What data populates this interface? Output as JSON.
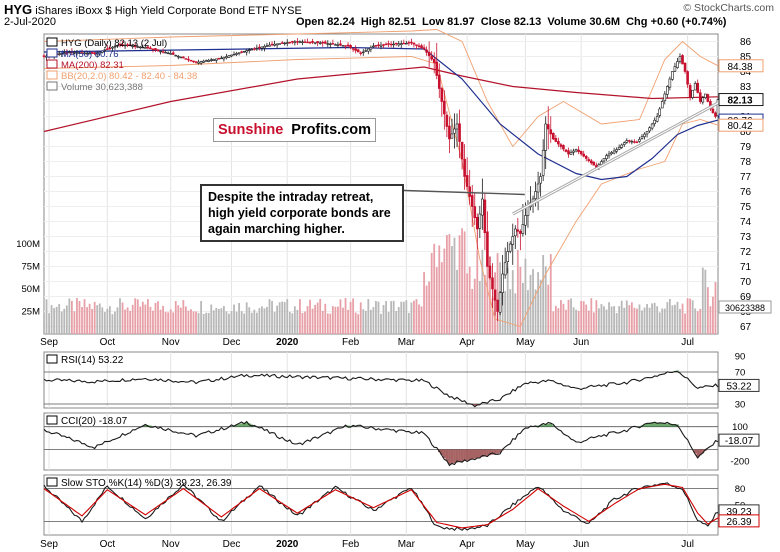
{
  "header": {
    "symbol": "HYG",
    "name": "iShares iBoxx $ High Yield Corporate Bond ETF",
    "exchange": "NYSE",
    "date": "2-Jul-2020",
    "open_label": "Open",
    "open": "82.24",
    "high_label": "High",
    "high": "82.51",
    "low_label": "Low",
    "low": "81.97",
    "close_label": "Close",
    "close": "82.13",
    "volume_label": "Volume",
    "volume": "30.6M",
    "chg_label": "Chg",
    "chg": "+0.60 (+0.74%)",
    "watermark": "© StockCharts.com"
  },
  "legend": {
    "price": "HYG (Daily) 82.13 (2 Jul)",
    "ma50": "MA(50) 80.76",
    "ma200": "MA(200) 82.31",
    "bb": "BB(20,2.0) 80.42 - 82.40 - 84.38",
    "volume": "Volume 30,623,388"
  },
  "logo": {
    "part1": "Sunshine",
    "part2": "Profits.com"
  },
  "annotation": "Despite the intraday retreat, high yield corporate bonds are again marching higher.",
  "colors": {
    "up": "#1a1a1a",
    "down": "#c8102e",
    "ma50": "#1f2f8f",
    "ma200": "#b3122a",
    "bb": "#f0a070",
    "trendline": "#a8a8a8",
    "volume_up": "#b8b8b8",
    "volume_down": "#e8a0a8",
    "ind_line": "#1a1a1a",
    "pos_fill": "#3c8a3c",
    "neg_fill": "#8a3030",
    "stoch_d": "#d00000"
  },
  "chart_data": [
    {
      "type": "candlestick",
      "title": "HYG (Daily)",
      "x_axis_labels": [
        "Sep",
        "Oct",
        "Nov",
        "Dec",
        "2020",
        "Feb",
        "Mar",
        "Apr",
        "May",
        "Jun",
        "Jul"
      ],
      "y_axis_ticks": [
        67,
        68,
        69,
        70,
        71,
        72,
        73,
        74,
        75,
        76,
        77,
        78,
        79,
        80,
        81,
        82,
        83,
        84,
        85,
        86
      ],
      "ylim": [
        66.5,
        86.5
      ],
      "price_markers": [
        {
          "label": "84.38",
          "value": 84.38
        },
        {
          "label": "82.13",
          "value": 82.13
        },
        {
          "label": "80.76",
          "value": 80.76
        },
        {
          "label": "80.42",
          "value": 80.42
        }
      ],
      "volume_axis_ticks": [
        "25M",
        "50M",
        "75M",
        "100M"
      ],
      "volume_marker": "30623388",
      "price_path": [
        [
          0,
          85.0
        ],
        [
          10,
          85.3
        ],
        [
          20,
          85.2
        ],
        [
          30,
          85.8
        ],
        [
          40,
          85.6
        ],
        [
          50,
          85.2
        ],
        [
          60,
          84.6
        ],
        [
          70,
          84.9
        ],
        [
          80,
          85.4
        ],
        [
          90,
          85.8
        ],
        [
          100,
          86.0
        ],
        [
          110,
          85.9
        ],
        [
          120,
          85.7
        ],
        [
          125,
          85.2
        ],
        [
          130,
          85.7
        ],
        [
          135,
          85.8
        ],
        [
          145,
          85.9
        ],
        [
          150,
          85.5
        ],
        [
          154,
          84.6
        ],
        [
          157,
          82.0
        ],
        [
          160,
          79.5
        ],
        [
          163,
          80.5
        ],
        [
          166,
          77.0
        ],
        [
          169,
          75.0
        ],
        [
          171,
          73.5
        ],
        [
          173,
          75.5
        ],
        [
          175,
          71.0
        ],
        [
          177,
          69.5
        ],
        [
          179,
          68.0
        ],
        [
          181,
          70.5
        ],
        [
          183,
          72.0
        ],
        [
          186,
          73.5
        ],
        [
          188,
          73.2
        ],
        [
          191,
          75.0
        ],
        [
          193,
          75.5
        ],
        [
          196,
          77.0
        ],
        [
          198,
          80.5
        ],
        [
          201,
          79.5
        ],
        [
          204,
          79.0
        ],
        [
          207,
          78.5
        ],
        [
          210,
          78.8
        ],
        [
          214,
          78.2
        ],
        [
          218,
          77.6
        ],
        [
          222,
          78.4
        ],
        [
          226,
          78.8
        ],
        [
          230,
          79.4
        ],
        [
          234,
          79.3
        ],
        [
          238,
          80.0
        ],
        [
          242,
          81.0
        ],
        [
          245,
          82.5
        ],
        [
          248,
          84.0
        ],
        [
          251,
          85.0
        ],
        [
          253,
          84.0
        ],
        [
          255,
          82.3
        ],
        [
          257,
          83.2
        ],
        [
          259,
          82.0
        ],
        [
          261,
          82.5
        ],
        [
          263,
          81.5
        ],
        [
          265,
          81.0
        ],
        [
          266,
          82.13
        ]
      ],
      "ma50_path": [
        [
          0,
          85.3
        ],
        [
          40,
          85.4
        ],
        [
          80,
          85.5
        ],
        [
          120,
          85.6
        ],
        [
          150,
          85.5
        ],
        [
          165,
          83.5
        ],
        [
          180,
          80.5
        ],
        [
          195,
          78.5
        ],
        [
          210,
          77.2
        ],
        [
          220,
          76.8
        ],
        [
          230,
          77.0
        ],
        [
          240,
          78.2
        ],
        [
          250,
          79.8
        ],
        [
          258,
          80.4
        ],
        [
          266,
          80.76
        ]
      ],
      "ma200_path": [
        [
          0,
          80.0
        ],
        [
          50,
          82.0
        ],
        [
          100,
          83.5
        ],
        [
          150,
          84.3
        ],
        [
          165,
          83.7
        ],
        [
          185,
          83.0
        ],
        [
          210,
          82.6
        ],
        [
          240,
          82.2
        ],
        [
          266,
          82.31
        ]
      ],
      "bb_upper_path": [
        [
          0,
          86.0
        ],
        [
          50,
          86.3
        ],
        [
          100,
          86.5
        ],
        [
          145,
          86.7
        ],
        [
          155,
          86.8
        ],
        [
          165,
          86.0
        ],
        [
          175,
          82.0
        ],
        [
          185,
          79.0
        ],
        [
          195,
          81.0
        ],
        [
          205,
          82.0
        ],
        [
          220,
          80.5
        ],
        [
          235,
          80.8
        ],
        [
          245,
          84.8
        ],
        [
          252,
          86.0
        ],
        [
          259,
          85.0
        ],
        [
          266,
          84.38
        ]
      ],
      "bb_lower_path": [
        [
          0,
          84.2
        ],
        [
          50,
          84.4
        ],
        [
          100,
          84.8
        ],
        [
          145,
          85.0
        ],
        [
          155,
          84.5
        ],
        [
          165,
          78.0
        ],
        [
          172,
          71.5
        ],
        [
          178,
          67.5
        ],
        [
          188,
          67.0
        ],
        [
          198,
          70.5
        ],
        [
          210,
          74.0
        ],
        [
          220,
          76.5
        ],
        [
          235,
          77.5
        ],
        [
          245,
          78.0
        ],
        [
          252,
          80.5
        ],
        [
          259,
          80.8
        ],
        [
          266,
          80.42
        ]
      ],
      "trendline": {
        "from": [
          185,
          74.5
        ],
        "to": [
          266,
          81.9
        ]
      }
    },
    {
      "type": "line",
      "title": "RSI(14) 53.22",
      "value_label": "53.22",
      "y_axis_ticks": [
        30,
        50,
        70,
        90
      ],
      "ylim": [
        25,
        95
      ],
      "thresholds": [
        30,
        70
      ],
      "values_path": [
        [
          0,
          60
        ],
        [
          20,
          58
        ],
        [
          40,
          62
        ],
        [
          60,
          57
        ],
        [
          80,
          66
        ],
        [
          100,
          64
        ],
        [
          120,
          62
        ],
        [
          150,
          59
        ],
        [
          160,
          40
        ],
        [
          170,
          28
        ],
        [
          180,
          36
        ],
        [
          190,
          56
        ],
        [
          200,
          59
        ],
        [
          210,
          49
        ],
        [
          220,
          53
        ],
        [
          230,
          57
        ],
        [
          240,
          64
        ],
        [
          250,
          72
        ],
        [
          258,
          50
        ],
        [
          266,
          53.22
        ]
      ]
    },
    {
      "type": "line",
      "title": "CCI(20) -18.07",
      "value_label": "-18.07",
      "y_axis_ticks": [
        -200,
        100
      ],
      "ylim": [
        -280,
        220
      ],
      "thresholds": [
        -100,
        100
      ],
      "values_path": [
        [
          0,
          70
        ],
        [
          20,
          -80
        ],
        [
          40,
          120
        ],
        [
          60,
          20
        ],
        [
          80,
          140
        ],
        [
          100,
          -60
        ],
        [
          120,
          110
        ],
        [
          150,
          40
        ],
        [
          160,
          -230
        ],
        [
          170,
          -180
        ],
        [
          180,
          -130
        ],
        [
          190,
          90
        ],
        [
          200,
          130
        ],
        [
          210,
          -40
        ],
        [
          220,
          20
        ],
        [
          230,
          70
        ],
        [
          240,
          140
        ],
        [
          250,
          120
        ],
        [
          258,
          -170
        ],
        [
          266,
          -18.07
        ]
      ]
    },
    {
      "type": "line",
      "title": "Slow STO %K(14) %D(3) 39.23, 26.39",
      "series_labels": [
        "39.23",
        "26.39"
      ],
      "y_axis_ticks": [
        20,
        50,
        80
      ],
      "ylim": [
        -5,
        105
      ],
      "thresholds": [
        20,
        80
      ],
      "k_path": [
        [
          0,
          85
        ],
        [
          15,
          20
        ],
        [
          25,
          85
        ],
        [
          40,
          25
        ],
        [
          55,
          88
        ],
        [
          70,
          20
        ],
        [
          85,
          85
        ],
        [
          100,
          30
        ],
        [
          115,
          82
        ],
        [
          130,
          40
        ],
        [
          145,
          82
        ],
        [
          155,
          10
        ],
        [
          165,
          5
        ],
        [
          175,
          12
        ],
        [
          185,
          50
        ],
        [
          195,
          85
        ],
        [
          205,
          40
        ],
        [
          215,
          15
        ],
        [
          225,
          60
        ],
        [
          235,
          82
        ],
        [
          245,
          90
        ],
        [
          252,
          80
        ],
        [
          258,
          22
        ],
        [
          262,
          10
        ],
        [
          266,
          39.23
        ]
      ],
      "d_path": [
        [
          0,
          80
        ],
        [
          15,
          30
        ],
        [
          25,
          78
        ],
        [
          40,
          32
        ],
        [
          55,
          80
        ],
        [
          70,
          28
        ],
        [
          85,
          80
        ],
        [
          100,
          35
        ],
        [
          115,
          78
        ],
        [
          130,
          45
        ],
        [
          145,
          78
        ],
        [
          155,
          18
        ],
        [
          165,
          8
        ],
        [
          175,
          14
        ],
        [
          185,
          42
        ],
        [
          195,
          80
        ],
        [
          205,
          48
        ],
        [
          215,
          20
        ],
        [
          225,
          52
        ],
        [
          235,
          80
        ],
        [
          245,
          88
        ],
        [
          252,
          82
        ],
        [
          258,
          35
        ],
        [
          262,
          15
        ],
        [
          266,
          26.39
        ]
      ]
    }
  ]
}
